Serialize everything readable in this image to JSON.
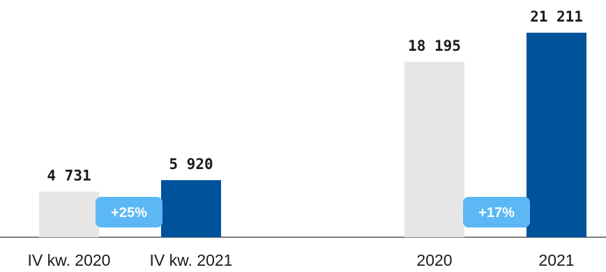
{
  "chart_data": {
    "type": "bar",
    "groups": [
      {
        "categories": [
          "IV kw. 2020",
          "IV kw. 2021"
        ],
        "values": [
          4731,
          5920
        ],
        "value_labels": [
          "4 731",
          "5 920"
        ],
        "change_badge": "+25%"
      },
      {
        "categories": [
          "2020",
          "2021"
        ],
        "values": [
          18195,
          21211
        ],
        "value_labels": [
          "18 195",
          "21 211"
        ],
        "change_badge": "+17%"
      }
    ],
    "title": "",
    "xlabel": "",
    "ylabel": "",
    "ylim": [
      0,
      22000
    ],
    "grid": false,
    "legend": "none"
  },
  "colors": {
    "previous_bar": "#e6e6e6",
    "current_bar": "#00529b",
    "badge": "#5bb8f5",
    "axis": "#808080"
  }
}
